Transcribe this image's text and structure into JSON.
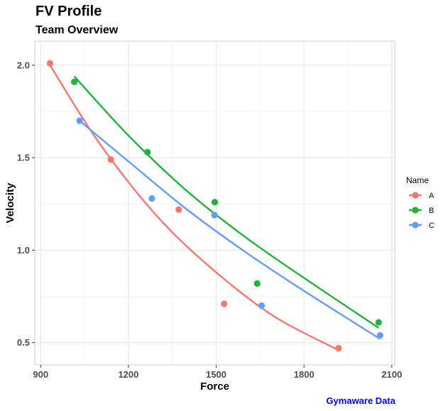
{
  "chart_data": {
    "type": "scatter",
    "title": "FV Profile",
    "subtitle": "Team Overview",
    "xlabel": "Force",
    "ylabel": "Velocity",
    "caption": "Gymaware Data",
    "caption_color": "#0000ff",
    "xlim": [
      880,
      2110
    ],
    "ylim": [
      0.38,
      2.13
    ],
    "x_ticks": [
      900,
      1200,
      1500,
      1800,
      2100
    ],
    "y_ticks": [
      0.5,
      1.0,
      1.5,
      2.0
    ],
    "x_tick_labels": [
      "900",
      "1200",
      "1500",
      "1800",
      "2100"
    ],
    "y_tick_labels": [
      "0.5",
      "1.0",
      "1.5",
      "2.0"
    ],
    "legend_title": "Name",
    "legend_position": "right",
    "series": [
      {
        "name": "A",
        "color": "#f8766d",
        "points": [
          [
            932,
            2.01
          ],
          [
            1140,
            1.49
          ],
          [
            1372,
            1.22
          ],
          [
            1527,
            0.71
          ],
          [
            1918,
            0.47
          ]
        ],
        "fit": [
          [
            932,
            2.0
          ],
          [
            1100,
            1.58
          ],
          [
            1300,
            1.18
          ],
          [
            1500,
            0.88
          ],
          [
            1700,
            0.64
          ],
          [
            1918,
            0.46
          ]
        ]
      },
      {
        "name": "B",
        "color": "#1fb33a",
        "points": [
          [
            1015,
            1.91
          ],
          [
            1265,
            1.53
          ],
          [
            1495,
            1.26
          ],
          [
            1640,
            0.82
          ],
          [
            2055,
            0.61
          ]
        ],
        "fit": [
          [
            1015,
            1.94
          ],
          [
            1200,
            1.62
          ],
          [
            1400,
            1.32
          ],
          [
            1600,
            1.07
          ],
          [
            1800,
            0.85
          ],
          [
            2055,
            0.58
          ]
        ]
      },
      {
        "name": "C",
        "color": "#619cff",
        "points": [
          [
            1033,
            1.7
          ],
          [
            1280,
            1.28
          ],
          [
            1494,
            1.19
          ],
          [
            1655,
            0.7
          ],
          [
            2060,
            0.54
          ]
        ],
        "fit": [
          [
            1033,
            1.7
          ],
          [
            1200,
            1.48
          ],
          [
            1400,
            1.22
          ],
          [
            1600,
            0.99
          ],
          [
            1800,
            0.78
          ],
          [
            2060,
            0.52
          ]
        ]
      }
    ]
  }
}
